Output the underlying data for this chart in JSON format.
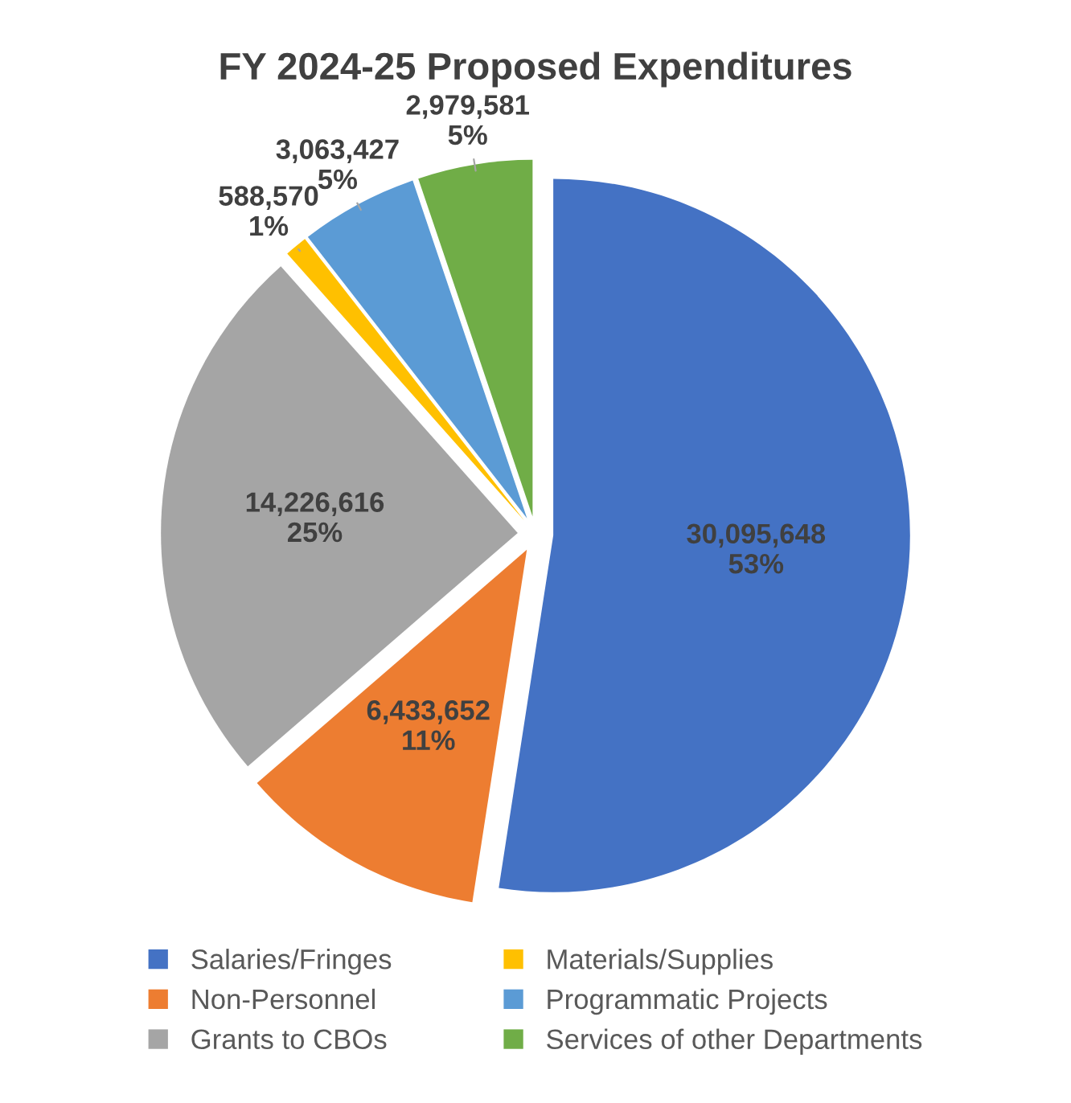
{
  "chart_data": {
    "type": "pie",
    "title": "FY 2024-25 Proposed Expenditures",
    "categories": [
      "Salaries/Fringes",
      "Non-Personnel",
      "Grants to CBOs",
      "Materials/Supplies",
      "Programmatic Projects",
      "Services of other Departments"
    ],
    "values": [
      30095648,
      6433652,
      14226616,
      588570,
      3063427,
      2979581
    ],
    "colors": [
      "#4472c4",
      "#ed7d31",
      "#a5a5a5",
      "#ffc000",
      "#5b9bd5",
      "#70ad47"
    ],
    "value_labels": [
      "30,095,648\n53%",
      "6,433,652\n11%",
      "14,226,616\n25%",
      "588,570\n1%",
      "3,063,427\n5%",
      "2,979,581\n5%"
    ],
    "legend": "bottom"
  }
}
